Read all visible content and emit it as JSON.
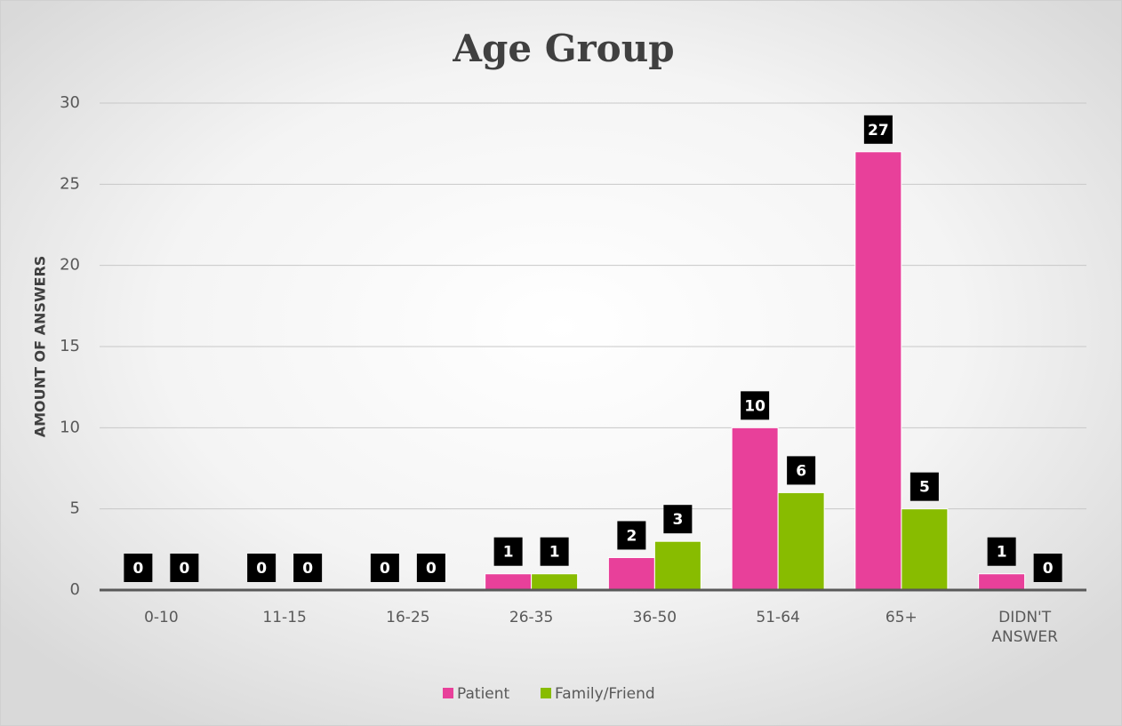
{
  "chart_data": {
    "type": "bar",
    "title": "Age Group",
    "y_label": "AMOUNT OF ANSWERS",
    "categories": [
      "0-10",
      "11-15",
      "16-25",
      "26-35",
      "36-50",
      "51-64",
      "65+",
      "DIDN'T ANSWER"
    ],
    "series": [
      {
        "name": "Patient",
        "color": "#e8409a",
        "values": [
          0,
          0,
          0,
          1,
          2,
          10,
          27,
          1
        ]
      },
      {
        "name": "Family/Friend",
        "color": "#88bc00",
        "values": [
          0,
          0,
          0,
          1,
          3,
          6,
          5,
          0
        ]
      }
    ],
    "ylim": [
      0,
      30
    ],
    "yticks": [
      0,
      5,
      10,
      15,
      20,
      25,
      30
    ],
    "grid": true,
    "legend": "bottom"
  }
}
